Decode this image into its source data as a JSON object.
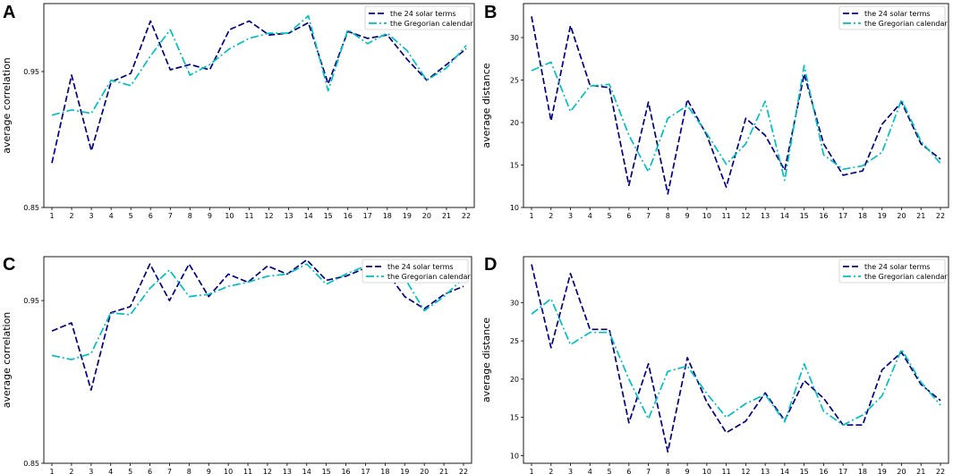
{
  "colors": {
    "solar": "#000080",
    "gregorian": "#00bfbf"
  },
  "chart_data": [
    {
      "panel": "A",
      "type": "line",
      "ylabel": "average correlation",
      "ylim": [
        0.85,
        1.0
      ],
      "yticks": [
        0.85,
        0.95
      ],
      "ytick_labels": [
        "0.85",
        "0.95"
      ],
      "x": [
        1,
        2,
        3,
        4,
        5,
        6,
        7,
        8,
        9,
        10,
        11,
        12,
        13,
        14,
        15,
        16,
        17,
        18,
        19,
        20,
        21,
        22
      ],
      "xtick_labels": [
        "1",
        "2",
        "3",
        "4",
        "5",
        "6",
        "7",
        "8",
        "9",
        "10",
        "11",
        "12",
        "13",
        "14",
        "15",
        "16",
        "17",
        "18",
        "19",
        "20",
        "21",
        "22"
      ],
      "legend": {
        "position": "top-right",
        "entries": [
          "the 24 solar terms",
          "the Gregorian calendar"
        ]
      },
      "series": [
        {
          "name": "the 24 solar terms",
          "style": "dashed",
          "color": "#000080",
          "values": [
            0.8827,
            0.9474,
            0.8917,
            0.9423,
            0.9487,
            0.9872,
            0.9513,
            0.9551,
            0.9513,
            0.9808,
            0.9872,
            0.9769,
            0.9782,
            0.9859,
            0.941,
            0.9795,
            0.9744,
            0.9769,
            0.959,
            0.9436,
            0.9551,
            0.9667
          ]
        },
        {
          "name": "the Gregorian calendar",
          "style": "dashdot",
          "color": "#00bfbf",
          "values": [
            0.9179,
            0.9218,
            0.9192,
            0.9436,
            0.9397,
            0.9615,
            0.9808,
            0.9474,
            0.9551,
            0.9667,
            0.9744,
            0.9782,
            0.9782,
            0.991,
            0.9359,
            0.9808,
            0.9705,
            0.9782,
            0.9654,
            0.9436,
            0.9526,
            0.9692
          ]
        }
      ]
    },
    {
      "panel": "B",
      "type": "line",
      "ylabel": "average distance",
      "ylim": [
        10,
        34
      ],
      "yticks": [
        10,
        15,
        20,
        25,
        30
      ],
      "ytick_labels": [
        "10",
        "15",
        "20",
        "25",
        "30"
      ],
      "x": [
        1,
        2,
        3,
        4,
        5,
        6,
        7,
        8,
        9,
        10,
        11,
        12,
        13,
        14,
        15,
        16,
        17,
        18,
        19,
        20,
        21,
        22
      ],
      "xtick_labels": [
        "1",
        "2",
        "3",
        "4",
        "5",
        "6",
        "7",
        "8",
        "9",
        "10",
        "11",
        "12",
        "13",
        "14",
        "15",
        "16",
        "17",
        "18",
        "19",
        "20",
        "21",
        "22"
      ],
      "legend": {
        "position": "top-right",
        "entries": [
          "the 24 solar terms",
          "the Gregorian calendar"
        ]
      },
      "series": [
        {
          "name": "the 24 solar terms",
          "style": "dashed",
          "color": "#000080",
          "values": [
            32.5,
            20.2,
            31.4,
            24.4,
            24.1,
            12.6,
            22.4,
            11.6,
            22.7,
            18.5,
            12.4,
            20.5,
            18.5,
            14.4,
            25.7,
            17.5,
            13.8,
            14.3,
            19.8,
            22.4,
            17.5,
            15.7
          ]
        },
        {
          "name": "the Gregorian calendar",
          "style": "dashdot",
          "color": "#00bfbf",
          "values": [
            26.1,
            27.1,
            21.3,
            24.3,
            24.5,
            18.5,
            14.2,
            20.5,
            22.0,
            18.7,
            15.1,
            17.5,
            22.5,
            13.2,
            26.7,
            16.2,
            14.5,
            14.9,
            16.5,
            22.7,
            17.8,
            15.2
          ]
        }
      ]
    },
    {
      "panel": "C",
      "type": "line",
      "ylabel": "average correlation",
      "ylim": [
        0.85,
        0.977
      ],
      "yticks": [
        0.85,
        0.95
      ],
      "ytick_labels": [
        "0.85",
        "0.95"
      ],
      "x": [
        1,
        2,
        3,
        4,
        5,
        6,
        7,
        8,
        9,
        10,
        11,
        12,
        13,
        14,
        15,
        16,
        17,
        18,
        19,
        20,
        21,
        22
      ],
      "xtick_labels": [
        "1",
        "2",
        "3",
        "4",
        "5",
        "6",
        "7",
        "8",
        "9",
        "10",
        "11",
        "12",
        "13",
        "14",
        "15",
        "16",
        "17",
        "18",
        "19",
        "20",
        "21",
        "22"
      ],
      "legend": {
        "position": "top-right",
        "entries": [
          "the 24 solar terms",
          "the Gregorian calendar"
        ]
      },
      "series": [
        {
          "name": "the 24 solar terms",
          "style": "dashed",
          "color": "#000080",
          "values": [
            0.9313,
            0.9363,
            0.895,
            0.9425,
            0.9463,
            0.9725,
            0.95,
            0.9725,
            0.9525,
            0.9663,
            0.9613,
            0.9713,
            0.9663,
            0.975,
            0.9625,
            0.965,
            0.97,
            0.9688,
            0.9525,
            0.945,
            0.9538,
            0.9588
          ]
        },
        {
          "name": "the Gregorian calendar",
          "style": "dashdot",
          "color": "#00bfbf",
          "values": [
            0.9163,
            0.9138,
            0.9175,
            0.9425,
            0.9413,
            0.9575,
            0.9688,
            0.9525,
            0.9538,
            0.9588,
            0.9613,
            0.965,
            0.9663,
            0.9725,
            0.96,
            0.9663,
            0.9713,
            0.9713,
            0.9638,
            0.9438,
            0.9525,
            0.9638
          ]
        }
      ]
    },
    {
      "panel": "D",
      "type": "line",
      "ylabel": "average distance",
      "ylim": [
        9,
        36
      ],
      "yticks": [
        10,
        15,
        20,
        25,
        30
      ],
      "ytick_labels": [
        "10",
        "15",
        "20",
        "25",
        "30"
      ],
      "x": [
        1,
        2,
        3,
        4,
        5,
        6,
        7,
        8,
        9,
        10,
        11,
        12,
        13,
        14,
        15,
        16,
        17,
        18,
        19,
        20,
        21,
        22
      ],
      "xtick_labels": [
        "1",
        "2",
        "3",
        "4",
        "5",
        "6",
        "7",
        "8",
        "9",
        "10",
        "11",
        "12",
        "13",
        "14",
        "15",
        "16",
        "17",
        "18",
        "19",
        "20",
        "21",
        "22"
      ],
      "legend": {
        "position": "top-right",
        "entries": [
          "the 24 solar terms",
          "the Gregorian calendar"
        ]
      },
      "series": [
        {
          "name": "the 24 solar terms",
          "style": "dashed",
          "color": "#000080",
          "values": [
            35.0,
            24.1,
            33.8,
            26.5,
            26.5,
            14.3,
            22.0,
            10.5,
            22.8,
            17.0,
            13.0,
            14.5,
            18.2,
            14.6,
            19.8,
            17.5,
            14.0,
            14.0,
            21.2,
            23.5,
            19.3,
            17.2
          ]
        },
        {
          "name": "the Gregorian calendar",
          "style": "dashdot",
          "color": "#00bfbf",
          "values": [
            28.5,
            30.5,
            24.5,
            26.1,
            26.1,
            20.0,
            14.8,
            21.0,
            21.7,
            18.1,
            15.0,
            16.8,
            18.0,
            14.4,
            22.0,
            15.8,
            14.0,
            15.3,
            17.8,
            23.9,
            19.6,
            16.6
          ]
        }
      ]
    }
  ]
}
